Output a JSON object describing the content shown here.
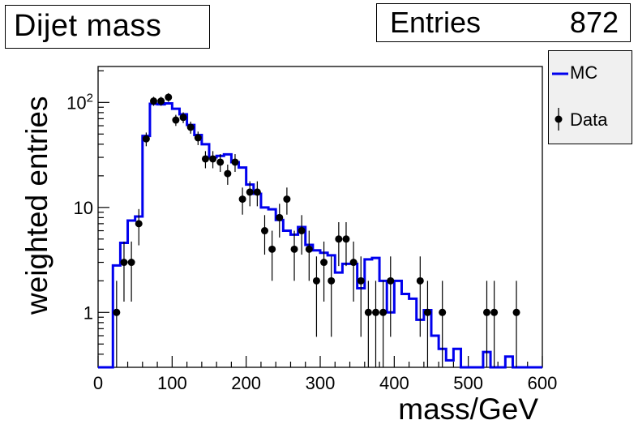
{
  "title": "Dijet mass",
  "stats": {
    "label": "Entries",
    "value": "872"
  },
  "legend": {
    "mc_label": "MC",
    "data_label": "Data"
  },
  "colors": {
    "mc": "#0000ee",
    "data": "#000000"
  },
  "chart_data": {
    "type": "line",
    "title": "Dijet mass",
    "xlabel": "mass/GeV",
    "ylabel": "weighted entries",
    "xlim": [
      0,
      600
    ],
    "ylim": [
      0.3,
      220
    ],
    "yscale": "log",
    "x_ticks": [
      0,
      100,
      200,
      300,
      400,
      500,
      600
    ],
    "x_tick_labels": [
      "0",
      "100",
      "200",
      "300",
      "400",
      "500",
      "600"
    ],
    "y_tick_labels": [
      "1",
      "10",
      "10^2"
    ],
    "legend_position": "right-outside",
    "series": [
      {
        "name": "MC",
        "style": "step-histogram",
        "bin_edges": [
          0,
          10,
          20,
          30,
          40,
          50,
          60,
          70,
          80,
          90,
          100,
          110,
          120,
          130,
          140,
          150,
          160,
          170,
          180,
          190,
          200,
          210,
          220,
          230,
          240,
          250,
          260,
          270,
          280,
          290,
          300,
          310,
          320,
          330,
          340,
          350,
          360,
          370,
          380,
          390,
          400,
          410,
          420,
          430,
          440,
          450,
          460,
          470,
          480,
          490,
          500,
          510,
          520,
          530,
          540,
          550,
          560,
          570,
          580,
          590,
          600
        ],
        "values": [
          0.3,
          0.3,
          2.8,
          4.6,
          7.5,
          8.2,
          48,
          97,
          96,
          98,
          87,
          77,
          61,
          49,
          40,
          30,
          31,
          32,
          27,
          24,
          16.5,
          13.5,
          10,
          9.6,
          7.6,
          6,
          5.5,
          6.5,
          4.4,
          3.9,
          3.7,
          3.5,
          2.4,
          2.9,
          2.9,
          1.7,
          3.2,
          3.3,
          2,
          1,
          2,
          1.5,
          1.35,
          0.85,
          1.05,
          0.6,
          0.45,
          0.35,
          0.45,
          0.3,
          0.3,
          0.3,
          0.42,
          0.3,
          0.3,
          0.38,
          0.3,
          0.3,
          0.3,
          0.3
        ]
      },
      {
        "name": "Data",
        "style": "points-with-errorbars",
        "x": [
          25,
          35,
          45,
          55,
          65,
          75,
          85,
          95,
          105,
          115,
          125,
          135,
          145,
          155,
          165,
          175,
          185,
          195,
          205,
          215,
          225,
          235,
          245,
          255,
          265,
          275,
          285,
          295,
          305,
          315,
          325,
          335,
          345,
          355,
          365,
          375,
          385,
          395,
          435,
          445,
          465,
          525,
          535,
          565
        ],
        "y": [
          1,
          3,
          3,
          7,
          45,
          103,
          103,
          112,
          68,
          72,
          58,
          46,
          29,
          29,
          27,
          21,
          27,
          12,
          14,
          14,
          6,
          4,
          8,
          12,
          4,
          6,
          4,
          2,
          3,
          2,
          5,
          5,
          3,
          2,
          1,
          1,
          1,
          2,
          2,
          1,
          1,
          1,
          1,
          1
        ]
      }
    ]
  }
}
